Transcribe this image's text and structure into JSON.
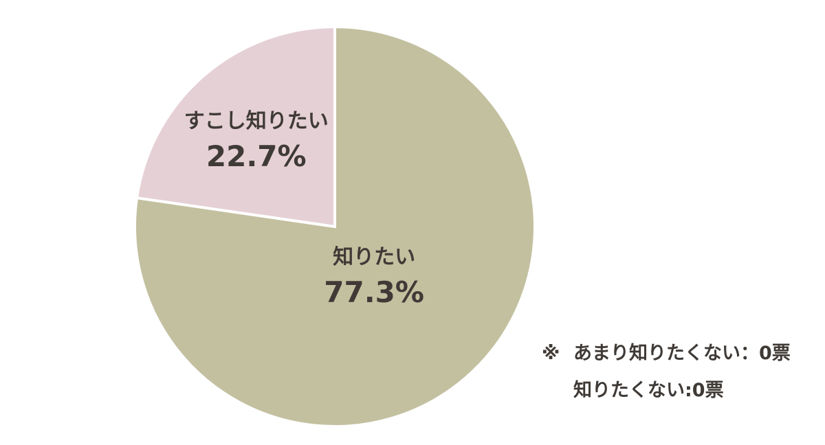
{
  "chart_data": {
    "type": "pie",
    "title": "",
    "start": "12 o'clock, clockwise",
    "slices": [
      {
        "label": "知りたい",
        "value": 77.3,
        "display": "77.3%",
        "color": "#c3c0a0"
      },
      {
        "label": "すこし知りたい",
        "value": 22.7,
        "display": "22.7%",
        "color": "#e5d0d6"
      }
    ],
    "separator_color": "#ffffff"
  },
  "note": {
    "mark": "※",
    "lines": [
      "あまり知りたくない：0票",
      "知りたくない:0票"
    ]
  }
}
